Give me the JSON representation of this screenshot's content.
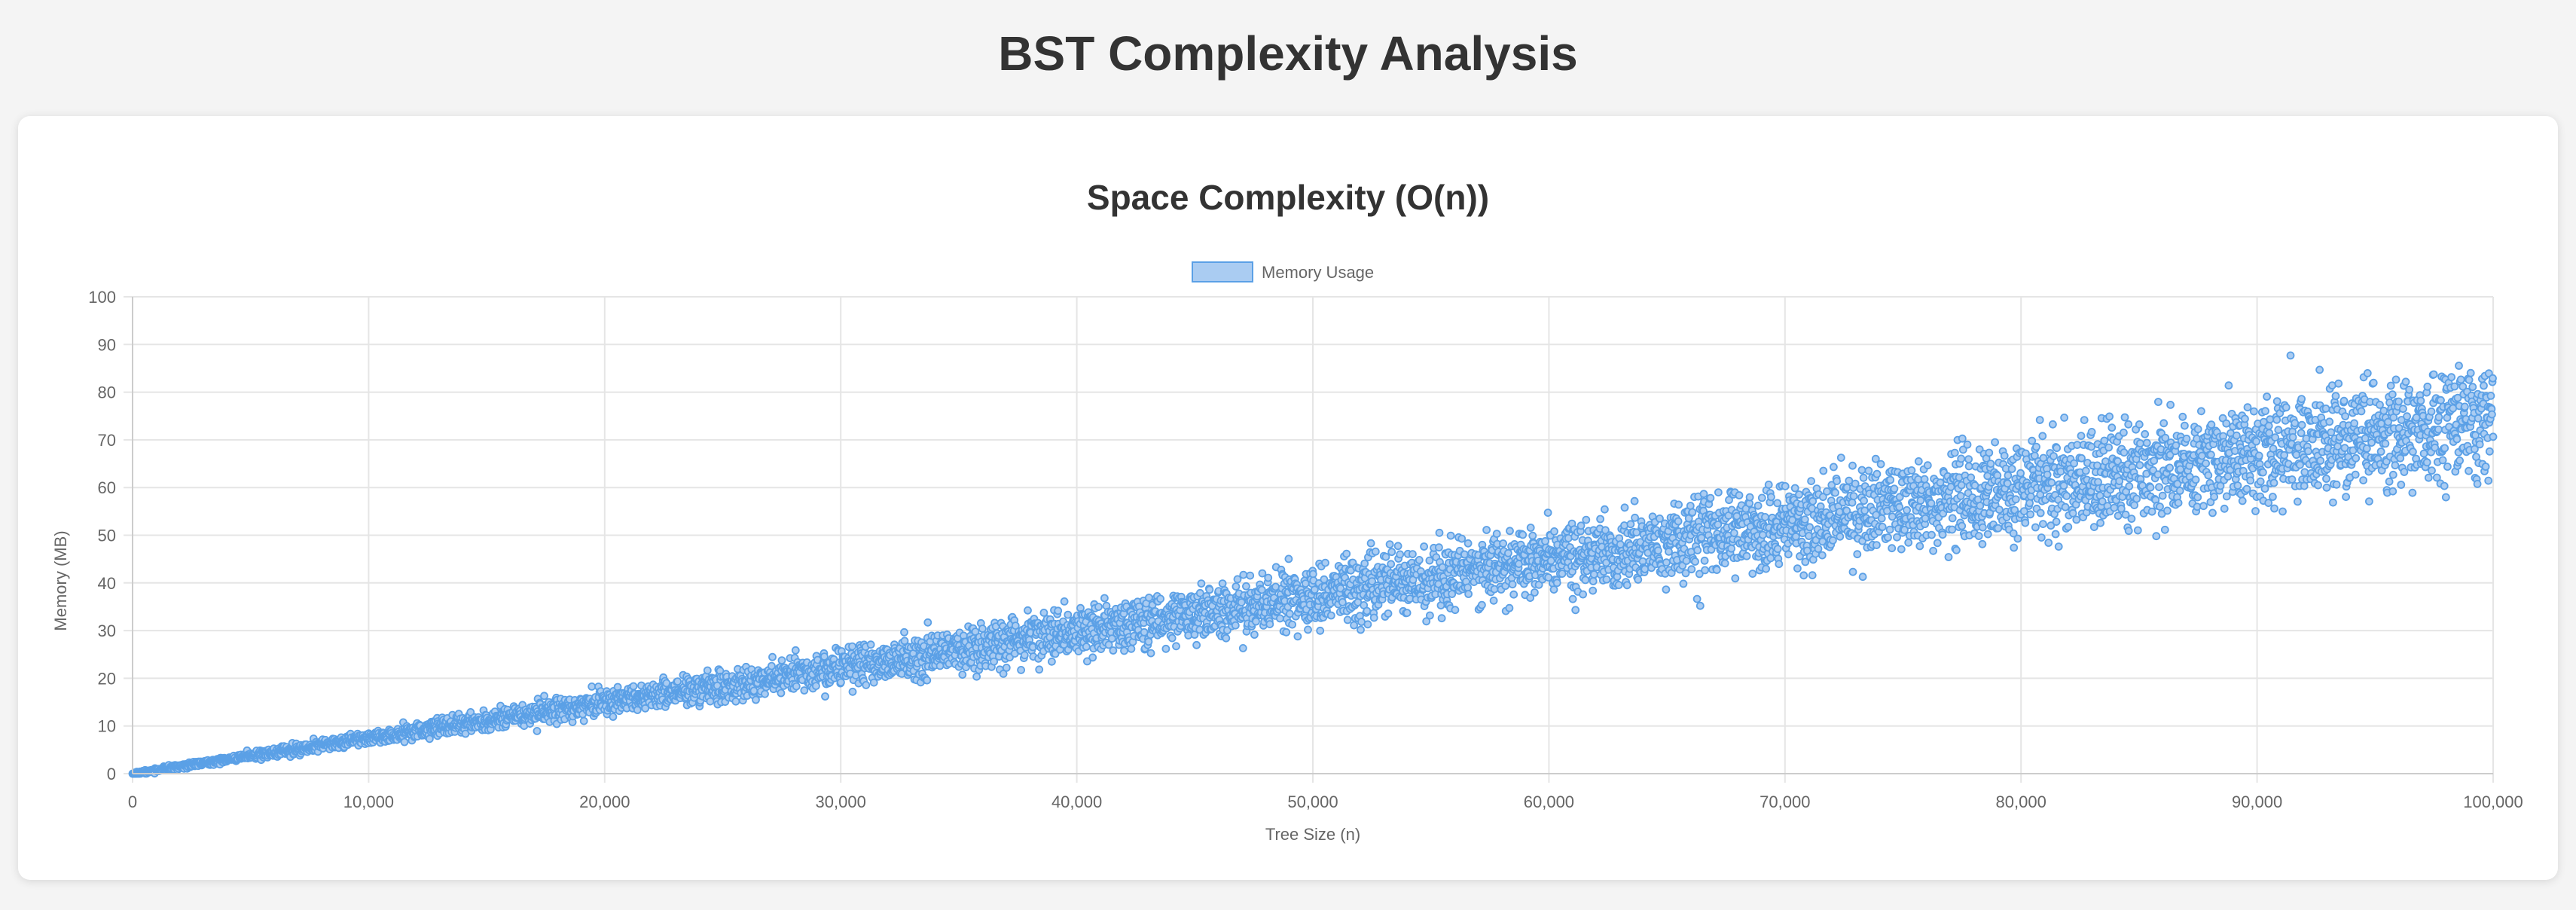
{
  "page": {
    "title": "BST Complexity Analysis"
  },
  "colors": {
    "background": "#f4f4f4",
    "card": "#ffffff",
    "title": "#333333",
    "series_stroke": "#5ba0e6",
    "series_fill": "#aaccf2",
    "grid": "#e5e5e5",
    "axis_text": "#666666"
  },
  "chart_data": {
    "type": "scatter",
    "title": "Space Complexity (O(n))",
    "xlabel": "Tree Size (n)",
    "ylabel": "Memory (MB)",
    "xlim": [
      0,
      100000
    ],
    "ylim": [
      0,
      100
    ],
    "x_ticks": [
      "0",
      "10,000",
      "20,000",
      "30,000",
      "40,000",
      "50,000",
      "60,000",
      "70,000",
      "80,000",
      "90,000",
      "100,000"
    ],
    "y_ticks": [
      "0",
      "10",
      "20",
      "30",
      "40",
      "50",
      "60",
      "70",
      "80",
      "90",
      "100"
    ],
    "grid": true,
    "legend_position": "top-center",
    "series": [
      {
        "name": "Memory Usage",
        "point_count": 6000,
        "trend": "two parallel linear bands",
        "bands": [
          {
            "slope_per_100k": 78,
            "note": "upper band"
          },
          {
            "slope_per_100k": 71,
            "note": "lower band"
          }
        ],
        "spread_at_x0": 0.3,
        "spread_at_xmax": 9,
        "y_at_xmax_range": [
          53,
          92
        ],
        "sample_points": [
          {
            "x": 0,
            "y": 0
          },
          {
            "x": 10000,
            "y": 7.5
          },
          {
            "x": 20000,
            "y": 15
          },
          {
            "x": 30000,
            "y": 22.5
          },
          {
            "x": 40000,
            "y": 30
          },
          {
            "x": 50000,
            "y": 37
          },
          {
            "x": 60000,
            "y": 44
          },
          {
            "x": 70000,
            "y": 52
          },
          {
            "x": 80000,
            "y": 59
          },
          {
            "x": 90000,
            "y": 66
          },
          {
            "x": 100000,
            "y": 74
          }
        ]
      }
    ]
  }
}
